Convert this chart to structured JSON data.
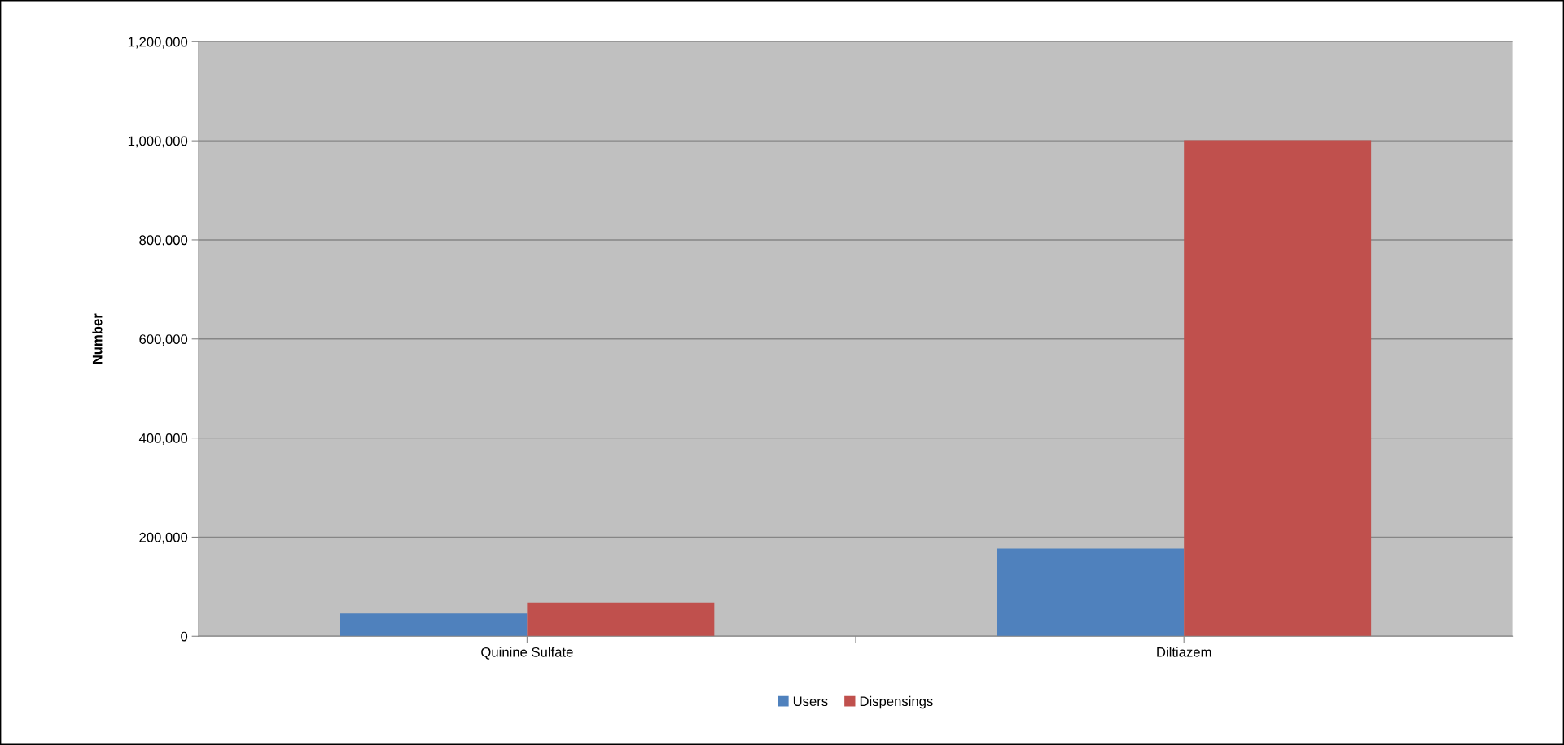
{
  "chart_data": {
    "type": "bar",
    "ylabel": "Number",
    "categories": [
      "Quinine Sulfate",
      "Diltiazem"
    ],
    "series": [
      {
        "name": "Users",
        "color": "#4f81bd",
        "values": [
          46000,
          177000
        ]
      },
      {
        "name": "Dispensings",
        "color": "#c0504d",
        "values": [
          68000,
          1001000
        ]
      }
    ],
    "ylim": [
      0,
      1200000
    ],
    "yticks": [
      {
        "value": 0,
        "label": "0"
      },
      {
        "value": 200000,
        "label": "200,000"
      },
      {
        "value": 400000,
        "label": "400,000"
      },
      {
        "value": 600000,
        "label": "600,000"
      },
      {
        "value": 800000,
        "label": "800,000"
      },
      {
        "value": 1000000,
        "label": "1,000,000"
      },
      {
        "value": 1200000,
        "label": "1,200,000"
      }
    ],
    "grid": "y",
    "legend": "bottom"
  }
}
